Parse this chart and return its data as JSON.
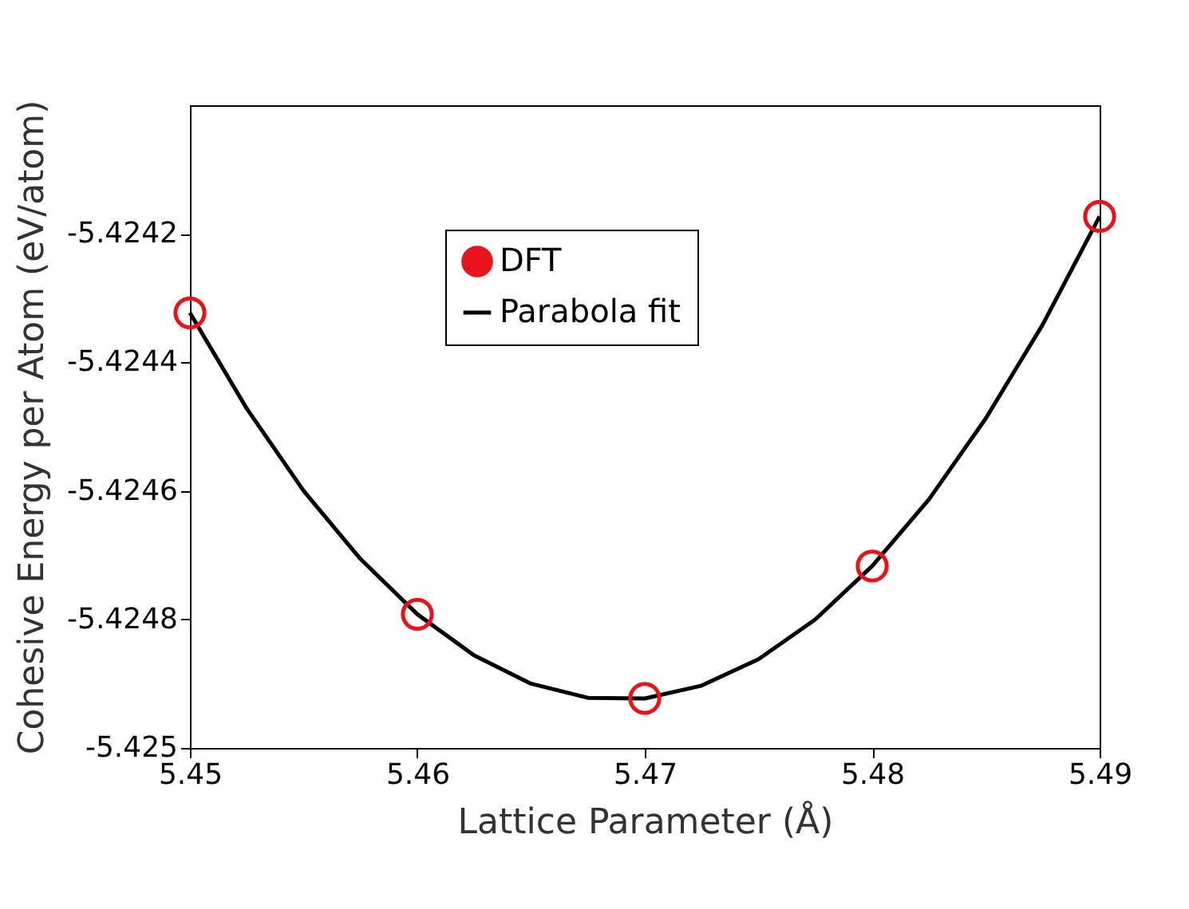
{
  "chart_data": {
    "type": "scatter",
    "xlabel": "Lattice Parameter (Å)",
    "ylabel": "Cohesive Energy per Atom (eV/atom)",
    "xlim": [
      5.45,
      5.49
    ],
    "xticks": [
      5.45,
      5.46,
      5.47,
      5.48,
      5.49
    ],
    "ylim": [
      -5.425,
      -5.424
    ],
    "yticks": [
      -5.425,
      -5.4248,
      -5.4246,
      -5.4244,
      -5.4242
    ],
    "grid": false,
    "legend": "top",
    "marker": "circle",
    "series": [
      {
        "name": "DFT",
        "color": "#e8141c",
        "x": [
          5.45,
          5.46,
          5.47,
          5.48,
          5.49
        ],
        "values": [
          -5.424323,
          -5.424792,
          -5.424923,
          -5.424717,
          -5.424173
        ]
      },
      {
        "name": "Parabola fit",
        "type": "line",
        "marker": "none",
        "color": "#000000",
        "line_style": "solid",
        "x": [
          5.45,
          5.4525,
          5.455,
          5.4575,
          5.46,
          5.4625,
          5.465,
          5.4675,
          5.47,
          5.4725,
          5.475,
          5.4775,
          5.48,
          5.4825,
          5.485,
          5.4875,
          5.49
        ],
        "values": [
          -5.424323,
          -5.424472,
          -5.4246,
          -5.424706,
          -5.424792,
          -5.424856,
          -5.4249,
          -5.424922,
          -5.424923,
          -5.424903,
          -5.424862,
          -5.4248,
          -5.424717,
          -5.424613,
          -5.424487,
          -5.424341,
          -5.424173
        ]
      }
    ]
  }
}
